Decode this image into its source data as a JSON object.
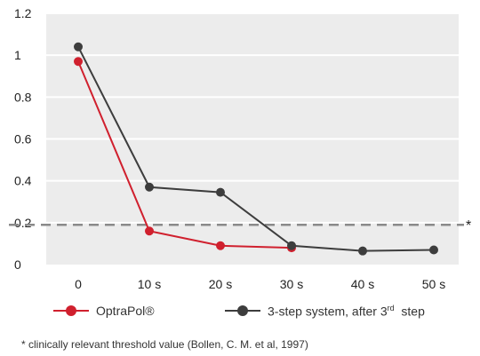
{
  "chart_data": {
    "type": "line",
    "categories": [
      "0",
      "10 s",
      "20 s",
      "30 s",
      "40 s",
      "50 s"
    ],
    "y_ticks": [
      "0",
      "0.2",
      "0.4",
      "0.6",
      "0.8",
      "1",
      "1.2"
    ],
    "ylim": [
      0,
      1.2
    ],
    "grid": true,
    "series": [
      {
        "name": "OptraPol®",
        "color": "#d0202e",
        "values": [
          0.97,
          0.16,
          0.09,
          0.08,
          null,
          null
        ]
      },
      {
        "name": "3-step system, after 3rd step",
        "color": "#3d3d3d",
        "values": [
          1.04,
          0.37,
          0.345,
          0.09,
          0.065,
          0.07
        ]
      }
    ],
    "threshold": {
      "value": 0.19,
      "marker": "*",
      "color": "#8a8a8a"
    },
    "legend_position": "bottom",
    "plot_background": "#ececec"
  },
  "legend": {
    "s1_label": "OptraPol®",
    "s2_prefix": "3-step system, after 3",
    "s2_sup": "rd",
    "s2_suffix": "  step"
  },
  "footnote": "* clinically relevant threshold value (Bollen, C. M. et al, 1997)"
}
